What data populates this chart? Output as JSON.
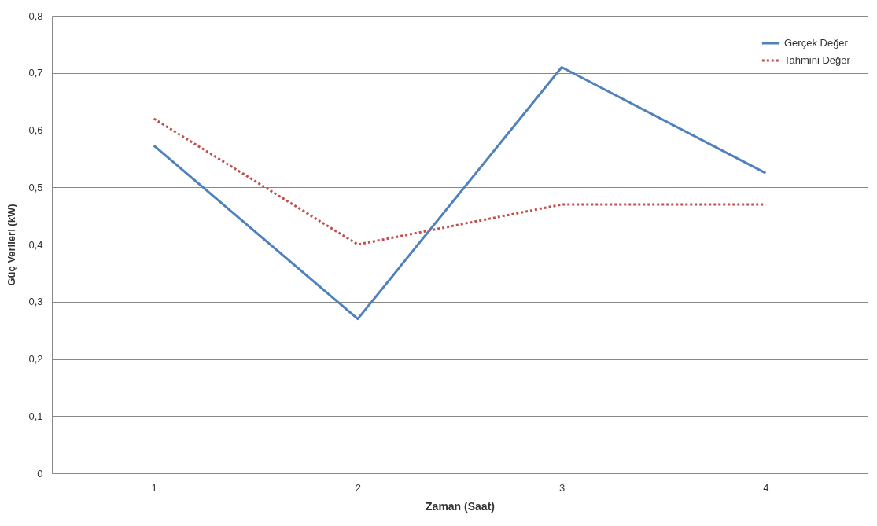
{
  "chart_data": {
    "type": "line",
    "xlabel": "Zaman  (Saat)",
    "ylabel": "Güç Verileri (kW)",
    "categories": [
      "1",
      "2",
      "3",
      "4"
    ],
    "series": [
      {
        "name": "Gerçek Değer",
        "color": "#4f81bd",
        "line_style": "solid",
        "values": [
          0.573,
          0.27,
          0.71,
          0.525
        ]
      },
      {
        "name": "Tahmini Değer",
        "color": "#c0504d",
        "line_style": "dotted",
        "values": [
          0.62,
          0.4,
          0.47,
          0.47
        ]
      }
    ],
    "ylim": [
      0,
      0.8
    ],
    "yticks": [
      {
        "value": 0,
        "label": "0"
      },
      {
        "value": 0.1,
        "label": "0,1"
      },
      {
        "value": 0.2,
        "label": "0,2"
      },
      {
        "value": 0.3,
        "label": "0,3"
      },
      {
        "value": 0.4,
        "label": "0,4"
      },
      {
        "value": 0.5,
        "label": "0,5"
      },
      {
        "value": 0.6,
        "label": "0,6"
      },
      {
        "value": 0.7,
        "label": "0,7"
      },
      {
        "value": 0.8,
        "label": "0,8"
      }
    ],
    "grid": "y",
    "legend": "top right",
    "marker": "none"
  }
}
